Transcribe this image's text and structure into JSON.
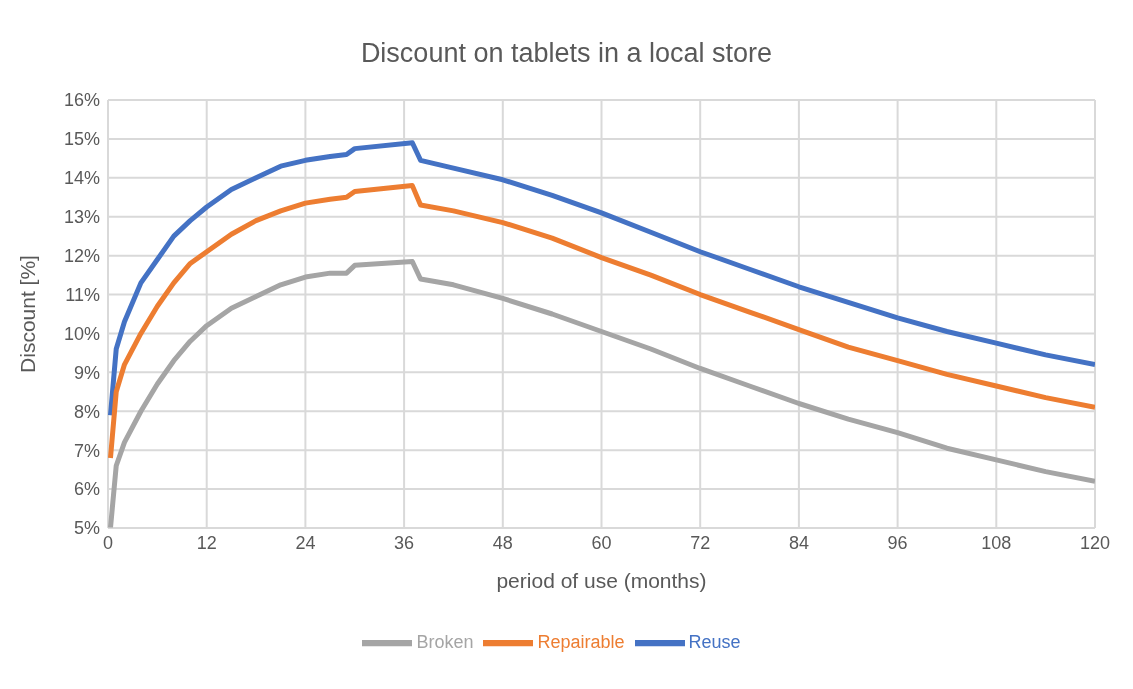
{
  "chart_data": {
    "type": "line",
    "title": "Discount on tablets in a local store",
    "xlabel": "period of use (months)",
    "ylabel": "Discount [%]",
    "x": [
      0.3,
      1,
      2,
      4,
      6,
      8,
      10,
      12,
      15,
      18,
      21,
      24,
      27,
      29,
      30,
      37,
      38,
      42,
      48,
      54,
      60,
      66,
      72,
      78,
      84,
      90,
      96,
      102,
      108,
      114,
      120
    ],
    "series": [
      {
        "name": "Reuse",
        "color": "#4472c4",
        "values": [
          7.9,
          9.6,
          10.3,
          11.3,
          11.9,
          12.5,
          12.9,
          13.25,
          13.7,
          14.0,
          14.3,
          14.45,
          14.55,
          14.6,
          14.75,
          14.9,
          14.45,
          14.25,
          13.95,
          13.55,
          13.1,
          12.6,
          12.1,
          11.65,
          11.2,
          10.8,
          10.4,
          10.05,
          9.75,
          9.45,
          9.2
        ]
      },
      {
        "name": "Repairable",
        "color": "#ed7d31",
        "values": [
          6.8,
          8.5,
          9.2,
          10.0,
          10.7,
          11.3,
          11.8,
          12.1,
          12.55,
          12.9,
          13.15,
          13.35,
          13.45,
          13.5,
          13.65,
          13.8,
          13.3,
          13.15,
          12.85,
          12.45,
          11.95,
          11.5,
          11.0,
          10.55,
          10.1,
          9.65,
          9.3,
          8.95,
          8.65,
          8.35,
          8.1
        ]
      },
      {
        "name": "Broken",
        "color": "#a5a5a5",
        "values": [
          5.0,
          6.6,
          7.2,
          8.0,
          8.7,
          9.3,
          9.8,
          10.2,
          10.65,
          10.95,
          11.25,
          11.45,
          11.55,
          11.55,
          11.75,
          11.85,
          11.4,
          11.25,
          10.9,
          10.5,
          10.05,
          9.6,
          9.1,
          8.65,
          8.2,
          7.8,
          7.45,
          7.05,
          6.75,
          6.45,
          6.2
        ]
      }
    ],
    "xlim": [
      0,
      120
    ],
    "xticks": [
      0,
      12,
      24,
      36,
      48,
      60,
      72,
      84,
      96,
      108,
      120
    ],
    "ylim": [
      5,
      16
    ],
    "yticks": [
      {
        "value": 5,
        "label": "5%"
      },
      {
        "value": 6,
        "label": "6%"
      },
      {
        "value": 7,
        "label": "7%"
      },
      {
        "value": 8,
        "label": "8%"
      },
      {
        "value": 9,
        "label": "9%"
      },
      {
        "value": 10,
        "label": "10%"
      },
      {
        "value": 11,
        "label": "11%"
      },
      {
        "value": 12,
        "label": "12%"
      },
      {
        "value": 13,
        "label": "13%"
      },
      {
        "value": 14,
        "label": "14%"
      },
      {
        "value": 15,
        "label": "15%"
      },
      {
        "value": 16,
        "label": "16%"
      }
    ],
    "grid": true,
    "legend": "bottom",
    "marker": "none",
    "line_style": "solid"
  }
}
